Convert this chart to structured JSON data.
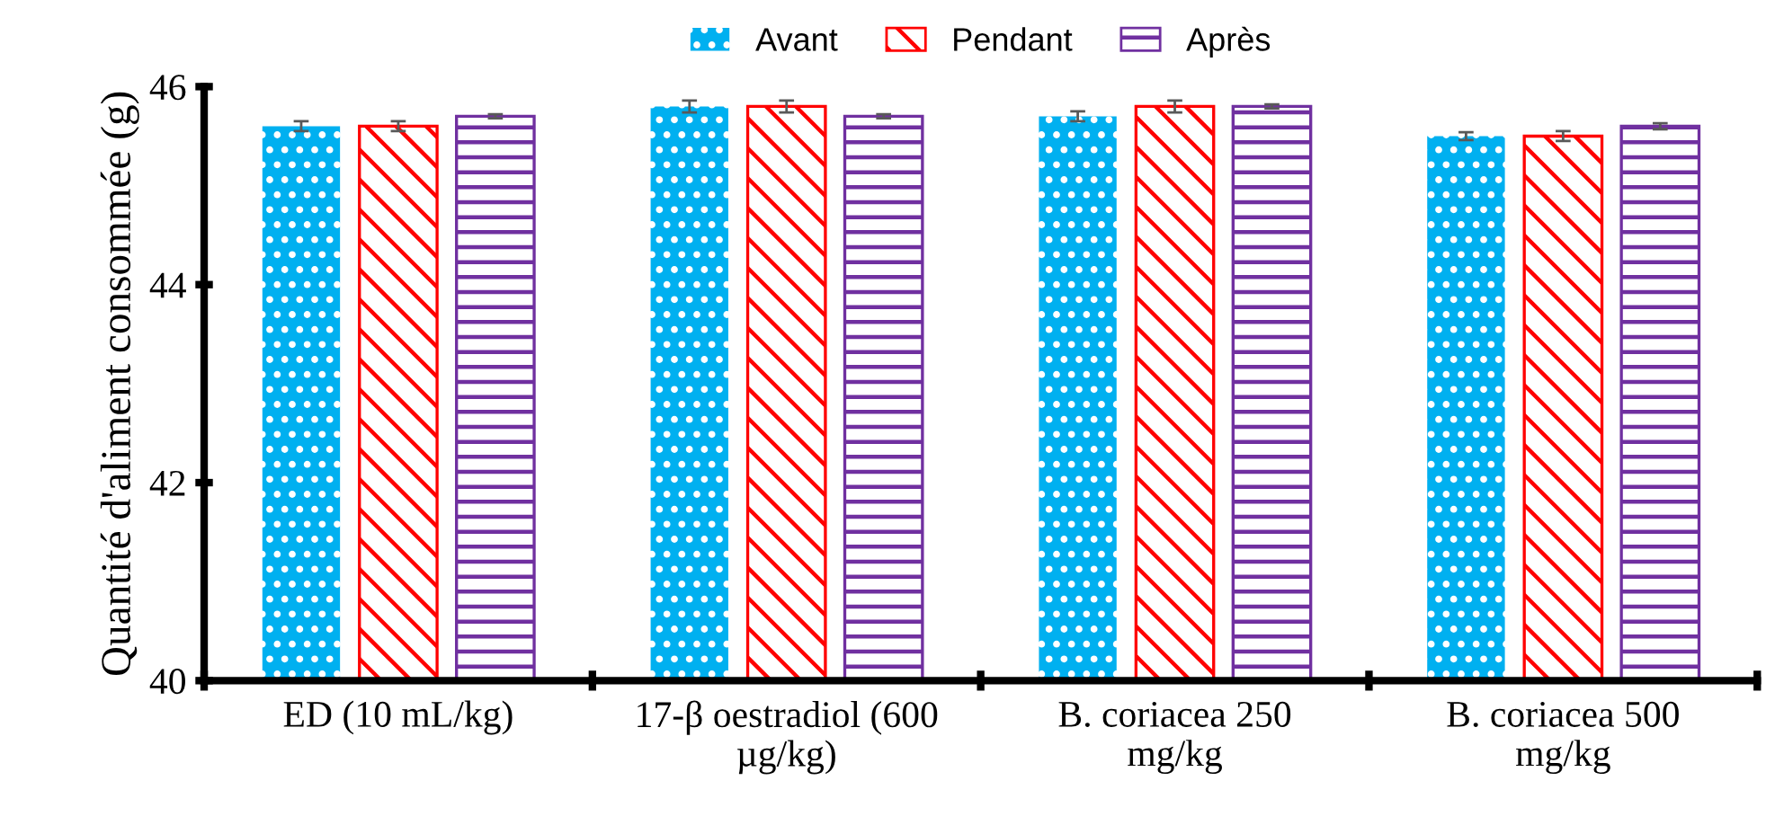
{
  "chart_data": {
    "type": "bar",
    "ylabel": "Quantité d'aliment consommée (g)",
    "categories": [
      "ED (10 mL/kg)",
      "17-β oestradiol (600\nµg/kg)",
      "B. coriacea 250\nmg/kg",
      "B. coriacea 500\nmg/kg"
    ],
    "series": [
      {
        "name": "Avant",
        "color": "#00b0f0",
        "values": [
          45.6,
          45.8,
          45.7,
          45.5
        ],
        "errors": [
          0.05,
          0.06,
          0.05,
          0.04
        ]
      },
      {
        "name": "Pendant",
        "color": "#ff0000",
        "values": [
          45.6,
          45.8,
          45.8,
          45.5
        ],
        "errors": [
          0.05,
          0.06,
          0.06,
          0.05
        ]
      },
      {
        "name": "Après",
        "color": "#7030a0",
        "values": [
          45.7,
          45.7,
          45.8,
          45.6
        ],
        "errors": [
          0.02,
          0.02,
          0.02,
          0.03
        ]
      }
    ],
    "ylim": [
      40,
      46
    ],
    "yticks": [
      40,
      42,
      44,
      46
    ],
    "grid": false,
    "legend": "top"
  }
}
